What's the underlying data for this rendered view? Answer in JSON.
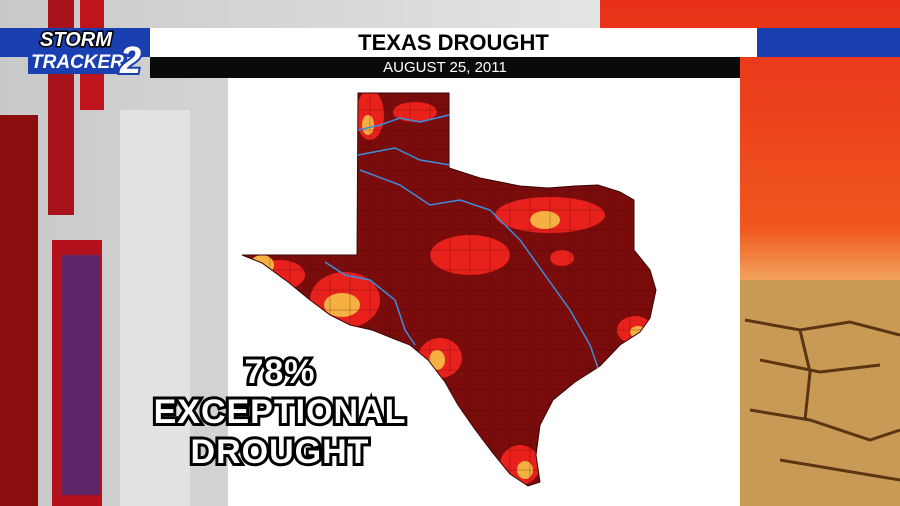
{
  "logo": {
    "line1": "STORM",
    "line2": "TRACKER",
    "number": "2"
  },
  "header": {
    "title": "TEXAS DROUGHT",
    "date": "AUGUST 25, 2011"
  },
  "callout": {
    "lines": [
      "78%",
      "EXCEPTIONAL",
      "DROUGHT"
    ]
  }
}
